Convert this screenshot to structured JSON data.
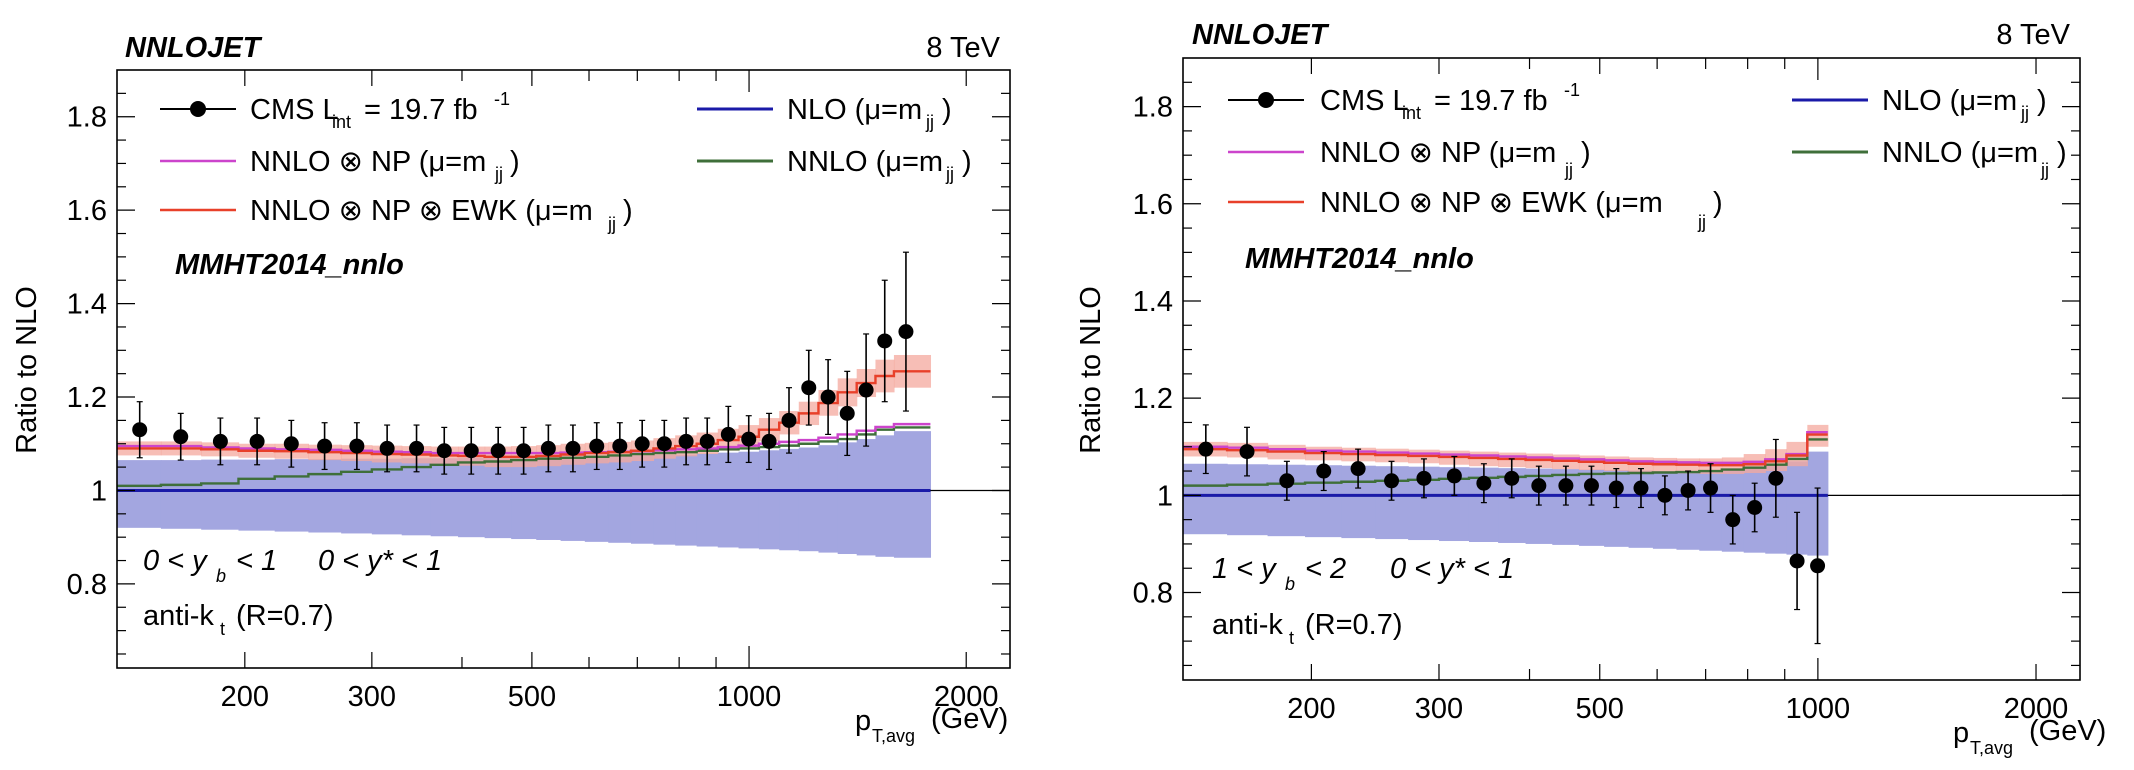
{
  "panels": [
    {
      "program": "NNLOJET",
      "energy": "8 TeV",
      "pdf": "MMHT2014_nnlo",
      "ylabel": "Ratio to NLO",
      "xlabel_main": "p",
      "xlabel_sub": "T,avg",
      "xlabel_unit": "(GeV)",
      "jet_main": "anti-k",
      "jet_sub": "t",
      "jet_rest": "(R=0.7)",
      "cut1": "0 < y",
      "cut1_sub": "b",
      "cut1_rest": "< 1",
      "cut2": "0 < y* < 1",
      "legend": {
        "cms_main": "CMS L",
        "cms_sub": "int",
        "cms_mid": "= 19.7 fb",
        "cms_sup": "-1",
        "nlo": "NLO (μ=m",
        "nlo_sub": "jj",
        "nnlo": "NNLO (μ=m",
        "nnlo_sub": "jj",
        "nnlo_np": "NNLO ⊗ NP (μ=m",
        "nnlo_np_sub": "jj",
        "nnlo_np_ewk": "NNLO ⊗ NP ⊗ EWK (μ=m",
        "nnlo_np_ewk_sub": "jj",
        "close": ")"
      },
      "yticks": [
        "0.8",
        "1",
        "1.2",
        "1.4",
        "1.6",
        "1.8"
      ],
      "xticks": [
        "200",
        "300",
        "500",
        "1000",
        "2000"
      ]
    },
    {
      "program": "NNLOJET",
      "energy": "8 TeV",
      "pdf": "MMHT2014_nnlo",
      "ylabel": "Ratio to NLO",
      "xlabel_main": "p",
      "xlabel_sub": "T,avg",
      "xlabel_unit": "(GeV)",
      "jet_main": "anti-k",
      "jet_sub": "t",
      "jet_rest": "(R=0.7)",
      "cut1": "1 < y",
      "cut1_sub": "b",
      "cut1_rest": "< 2",
      "cut2": "0 < y* < 1",
      "legend": {
        "cms_main": "CMS L",
        "cms_sub": "int",
        "cms_mid": "= 19.7 fb",
        "cms_sup": "-1",
        "nlo": "NLO (μ=m",
        "nlo_sub": "jj",
        "nnlo": "NNLO (μ=m",
        "nnlo_sub": "jj",
        "nnlo_np": "NNLO ⊗ NP (μ=m",
        "nnlo_np_sub": "jj",
        "nnlo_np_ewk": "NNLO ⊗ NP ⊗ EWK (μ=m",
        "nnlo_np_ewk_sub": "jj",
        "close": ")"
      },
      "yticks": [
        "0.8",
        "1",
        "1.2",
        "1.4",
        "1.6",
        "1.8"
      ],
      "xticks": [
        "200",
        "300",
        "500",
        "1000",
        "2000"
      ]
    }
  ],
  "colors": {
    "nlo": "#1a1aa8",
    "nlo_band": "#a3a6e0",
    "nnlo": "#3f6f3a",
    "nnlo_np": "#cc44cc",
    "nnlo_np_ewk": "#e8402a",
    "ewk_band": "#f4a89e",
    "data": "#000000"
  },
  "chart_data": [
    {
      "type": "line",
      "title": "NNLOJET 8 TeV, 0 < y_b < 1, 0 < y* < 1",
      "xlabel": "p_T,avg (GeV)",
      "ylabel": "Ratio to NLO",
      "xscale": "log",
      "xlim": [
        133,
        2300
      ],
      "ylim": [
        0.62,
        1.9
      ],
      "edges": [
        133,
        153,
        174,
        196,
        220,
        245,
        272,
        300,
        330,
        362,
        395,
        430,
        468,
        507,
        548,
        592,
        638,
        686,
        737,
        790,
        846,
        905,
        967,
        1032,
        1101,
        1172,
        1248,
        1327,
        1410,
        1497,
        1588,
        1784
      ],
      "bands": {
        "nlo_lo": [
          0.92,
          0.918,
          0.916,
          0.914,
          0.912,
          0.91,
          0.908,
          0.906,
          0.904,
          0.902,
          0.9,
          0.898,
          0.896,
          0.894,
          0.892,
          0.89,
          0.888,
          0.886,
          0.884,
          0.882,
          0.88,
          0.878,
          0.876,
          0.874,
          0.872,
          0.87,
          0.867,
          0.864,
          0.861,
          0.858,
          0.856
        ],
        "nlo_hi": [
          1.065,
          1.065,
          1.066,
          1.066,
          1.067,
          1.067,
          1.068,
          1.068,
          1.069,
          1.069,
          1.07,
          1.07,
          1.071,
          1.071,
          1.072,
          1.073,
          1.074,
          1.075,
          1.076,
          1.077,
          1.079,
          1.081,
          1.083,
          1.086,
          1.089,
          1.092,
          1.097,
          1.103,
          1.11,
          1.118,
          1.127
        ],
        "ewk_lo": [
          1.075,
          1.075,
          1.073,
          1.07,
          1.068,
          1.065,
          1.063,
          1.06,
          1.058,
          1.055,
          1.053,
          1.05,
          1.05,
          1.052,
          1.055,
          1.058,
          1.06,
          1.063,
          1.068,
          1.073,
          1.078,
          1.085,
          1.092,
          1.105,
          1.12,
          1.14,
          1.16,
          1.18,
          1.2,
          1.21,
          1.22
        ],
        "ewk_hi": [
          1.105,
          1.105,
          1.103,
          1.1,
          1.1,
          1.098,
          1.097,
          1.096,
          1.095,
          1.094,
          1.094,
          1.094,
          1.095,
          1.097,
          1.1,
          1.102,
          1.104,
          1.107,
          1.112,
          1.118,
          1.124,
          1.132,
          1.14,
          1.155,
          1.17,
          1.19,
          1.215,
          1.24,
          1.26,
          1.28,
          1.29
        ]
      },
      "series": [
        {
          "name": "NNLO (μ=m_jj)",
          "values": [
            1.01,
            1.012,
            1.015,
            1.025,
            1.03,
            1.035,
            1.04,
            1.045,
            1.05,
            1.055,
            1.06,
            1.062,
            1.065,
            1.068,
            1.07,
            1.072,
            1.075,
            1.078,
            1.08,
            1.082,
            1.085,
            1.088,
            1.09,
            1.093,
            1.096,
            1.1,
            1.105,
            1.11,
            1.12,
            1.13,
            1.135
          ]
        },
        {
          "name": "NNLO ⊗ NP (μ=m_jj)",
          "values": [
            1.095,
            1.095,
            1.092,
            1.09,
            1.088,
            1.087,
            1.085,
            1.083,
            1.082,
            1.08,
            1.08,
            1.08,
            1.08,
            1.08,
            1.081,
            1.082,
            1.083,
            1.084,
            1.086,
            1.088,
            1.09,
            1.093,
            1.096,
            1.1,
            1.104,
            1.108,
            1.113,
            1.12,
            1.128,
            1.136,
            1.142
          ]
        },
        {
          "name": "NNLO ⊗ NP ⊗ EWK (μ=m_jj)",
          "values": [
            1.09,
            1.09,
            1.088,
            1.085,
            1.084,
            1.082,
            1.08,
            1.078,
            1.077,
            1.075,
            1.074,
            1.072,
            1.072,
            1.074,
            1.077,
            1.08,
            1.082,
            1.085,
            1.09,
            1.095,
            1.1,
            1.108,
            1.115,
            1.13,
            1.145,
            1.165,
            1.187,
            1.21,
            1.23,
            1.245,
            1.255
          ]
        }
      ],
      "data": {
        "name": "CMS L_int = 19.7 fb^-1",
        "x": [
          143,
          163,
          185,
          208,
          232,
          258,
          286,
          315,
          346,
          378,
          412,
          449,
          487,
          527,
          570,
          615,
          662,
          711,
          763,
          818,
          875,
          936,
          999,
          1066,
          1136,
          1210,
          1287,
          1368,
          1453,
          1542
        ],
        "y": [
          1.13,
          1.115,
          1.105,
          1.105,
          1.1,
          1.095,
          1.095,
          1.09,
          1.09,
          1.085,
          1.085,
          1.085,
          1.085,
          1.09,
          1.09,
          1.095,
          1.095,
          1.1,
          1.1,
          1.105,
          1.105,
          1.12,
          1.11,
          1.105,
          1.15,
          1.22,
          1.2,
          1.165,
          1.215,
          1.32
        ],
        "err": [
          0.06,
          0.05,
          0.05,
          0.05,
          0.05,
          0.05,
          0.05,
          0.05,
          0.05,
          0.05,
          0.05,
          0.05,
          0.05,
          0.05,
          0.05,
          0.05,
          0.05,
          0.05,
          0.05,
          0.05,
          0.05,
          0.06,
          0.05,
          0.06,
          0.07,
          0.08,
          0.08,
          0.09,
          0.12,
          0.13
        ]
      },
      "extra_point": {
        "x": 1650,
        "y": 1.34,
        "err": 0.17
      }
    },
    {
      "type": "line",
      "title": "NNLOJET 8 TeV, 1 < y_b < 2, 0 < y* < 1",
      "xlabel": "p_T,avg (GeV)",
      "ylabel": "Ratio to NLO",
      "xscale": "log",
      "xlim": [
        133,
        2300
      ],
      "ylim": [
        0.62,
        1.9
      ],
      "edges": [
        133,
        153,
        174,
        196,
        220,
        245,
        272,
        300,
        330,
        362,
        395,
        430,
        468,
        507,
        548,
        592,
        638,
        686,
        737,
        790,
        846,
        905,
        967,
        1032
      ],
      "bands": {
        "nlo_lo": [
          0.92,
          0.918,
          0.916,
          0.914,
          0.912,
          0.91,
          0.908,
          0.906,
          0.904,
          0.902,
          0.9,
          0.898,
          0.896,
          0.894,
          0.892,
          0.89,
          0.888,
          0.886,
          0.884,
          0.882,
          0.88,
          0.878,
          0.876
        ],
        "nlo_hi": [
          1.065,
          1.064,
          1.063,
          1.062,
          1.061,
          1.06,
          1.059,
          1.058,
          1.057,
          1.056,
          1.055,
          1.054,
          1.053,
          1.052,
          1.051,
          1.05,
          1.05,
          1.051,
          1.053,
          1.057,
          1.063,
          1.07,
          1.09
        ],
        "ewk_lo": [
          1.08,
          1.078,
          1.074,
          1.072,
          1.07,
          1.068,
          1.066,
          1.063,
          1.06,
          1.058,
          1.056,
          1.054,
          1.052,
          1.05,
          1.048,
          1.047,
          1.045,
          1.044,
          1.044,
          1.046,
          1.05,
          1.06,
          1.1
        ],
        "ewk_hi": [
          1.11,
          1.108,
          1.104,
          1.1,
          1.098,
          1.096,
          1.094,
          1.092,
          1.09,
          1.088,
          1.086,
          1.084,
          1.082,
          1.08,
          1.078,
          1.077,
          1.076,
          1.076,
          1.078,
          1.085,
          1.095,
          1.11,
          1.145
        ]
      },
      "series": [
        {
          "name": "NNLO (μ=m_jj)",
          "values": [
            1.02,
            1.022,
            1.024,
            1.026,
            1.028,
            1.03,
            1.032,
            1.034,
            1.036,
            1.038,
            1.04,
            1.042,
            1.044,
            1.045,
            1.046,
            1.047,
            1.048,
            1.05,
            1.053,
            1.057,
            1.063,
            1.075,
            1.115
          ]
        },
        {
          "name": "NNLO ⊗ NP (μ=m_jj)",
          "values": [
            1.1,
            1.098,
            1.095,
            1.092,
            1.09,
            1.088,
            1.086,
            1.084,
            1.082,
            1.08,
            1.078,
            1.076,
            1.074,
            1.072,
            1.07,
            1.069,
            1.068,
            1.067,
            1.067,
            1.069,
            1.074,
            1.085,
            1.13
          ]
        },
        {
          "name": "NNLO ⊗ NP ⊗ EWK (μ=m_jj)",
          "values": [
            1.095,
            1.093,
            1.09,
            1.087,
            1.085,
            1.083,
            1.081,
            1.079,
            1.077,
            1.075,
            1.073,
            1.071,
            1.069,
            1.067,
            1.065,
            1.064,
            1.063,
            1.062,
            1.062,
            1.064,
            1.07,
            1.082,
            1.125
          ]
        }
      ],
      "data": {
        "name": "CMS L_int = 19.7 fb^-1",
        "x": [
          143,
          163,
          185,
          208,
          232,
          258,
          286,
          315,
          346,
          378,
          412,
          449,
          487,
          527,
          570,
          615,
          662,
          711,
          763,
          818,
          875,
          936,
          999
        ],
        "y": [
          1.095,
          1.09,
          1.03,
          1.05,
          1.055,
          1.03,
          1.035,
          1.04,
          1.025,
          1.035,
          1.02,
          1.02,
          1.02,
          1.015,
          1.015,
          1.0,
          1.01,
          1.015,
          0.95,
          0.975,
          1.035,
          0.865,
          0.855
        ],
        "err": [
          0.05,
          0.05,
          0.04,
          0.04,
          0.04,
          0.04,
          0.04,
          0.04,
          0.04,
          0.04,
          0.04,
          0.04,
          0.04,
          0.04,
          0.04,
          0.04,
          0.04,
          0.05,
          0.05,
          0.05,
          0.08,
          0.1,
          0.16
        ]
      }
    }
  ]
}
